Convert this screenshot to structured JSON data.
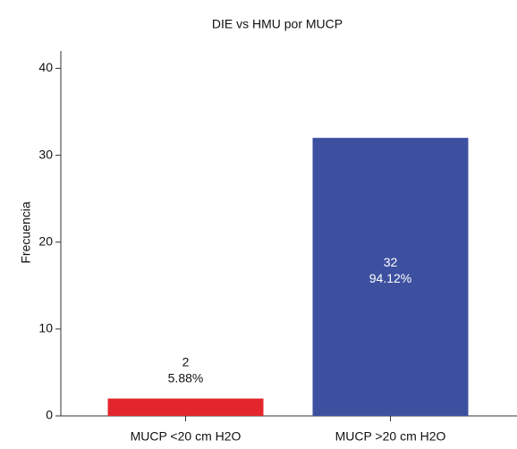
{
  "chart_data": {
    "type": "bar",
    "title": "DIE vs HMU por MUCP",
    "y_label": "Frecuencia",
    "categories": [
      "MUCP <20 cm H2O",
      "MUCP >20 cm H2O"
    ],
    "values": [
      2,
      32
    ],
    "percent_labels": [
      "5.88%",
      "94.12%"
    ],
    "colors": [
      "#e3262c",
      "#3d50a0"
    ],
    "ylim": [
      0,
      42
    ],
    "yticks": [
      0,
      10,
      20,
      30,
      40
    ],
    "grid": false
  }
}
